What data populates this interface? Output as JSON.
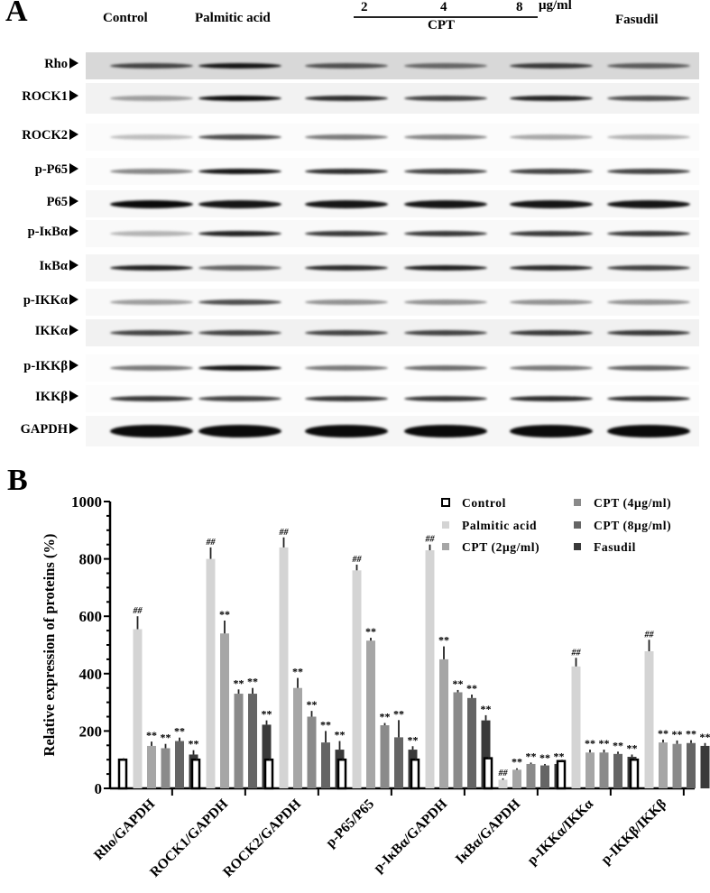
{
  "panelA": {
    "letter": "A",
    "lane_headers": {
      "control": "Control",
      "palmitic": "Palmitic acid",
      "cpt_doses": [
        "2",
        "4",
        "8"
      ],
      "cpt_unit": "μg/ml",
      "cpt_label": "CPT",
      "fasudil": "Fasudil"
    },
    "blots": [
      {
        "label": "Rho",
        "y": 58,
        "bg": "#d8d8d8",
        "h": 30,
        "intensity": [
          0.75,
          0.95,
          0.7,
          0.6,
          0.8,
          0.65
        ]
      },
      {
        "label": "ROCK1",
        "y": 92,
        "bg": "#f2f2f2",
        "h": 34,
        "intensity": [
          0.35,
          1.0,
          0.85,
          0.75,
          0.9,
          0.7
        ]
      },
      {
        "label": "ROCK2",
        "y": 137,
        "bg": "#fbfbfb",
        "h": 30,
        "intensity": [
          0.2,
          0.7,
          0.5,
          0.45,
          0.3,
          0.25
        ]
      },
      {
        "label": "p-P65",
        "y": 175,
        "bg": "#fbfbfb",
        "h": 30,
        "intensity": [
          0.45,
          0.95,
          0.85,
          0.75,
          0.75,
          0.75
        ]
      },
      {
        "label": "P65",
        "y": 211,
        "bg": "#f7f7f7",
        "h": 30,
        "intensity": [
          1.0,
          0.95,
          0.95,
          0.95,
          0.95,
          0.95
        ]
      },
      {
        "label": "p-IκBα",
        "y": 244,
        "bg": "#f9f9f9",
        "h": 30,
        "intensity": [
          0.25,
          0.9,
          0.8,
          0.8,
          0.8,
          0.8
        ]
      },
      {
        "label": "IκBα",
        "y": 282,
        "bg": "#f4f4f4",
        "h": 30,
        "intensity": [
          0.9,
          0.6,
          0.85,
          0.9,
          0.85,
          0.75
        ]
      },
      {
        "label": "p-IKKα",
        "y": 320,
        "bg": "#f8f8f8",
        "h": 30,
        "intensity": [
          0.35,
          0.7,
          0.4,
          0.4,
          0.4,
          0.4
        ]
      },
      {
        "label": "IKKα",
        "y": 354,
        "bg": "#f1f1f1",
        "h": 30,
        "intensity": [
          0.75,
          0.75,
          0.75,
          0.75,
          0.8,
          0.8
        ]
      },
      {
        "label": "p-IKKβ",
        "y": 393,
        "bg": "#fcfcfc",
        "h": 30,
        "intensity": [
          0.5,
          0.95,
          0.5,
          0.55,
          0.5,
          0.6
        ]
      },
      {
        "label": "IKKβ",
        "y": 427,
        "bg": "#fcfcfc",
        "h": 30,
        "intensity": [
          0.8,
          0.75,
          0.8,
          0.8,
          0.85,
          0.85
        ]
      },
      {
        "label": "GAPDH",
        "y": 461,
        "bg": "#f6f6f6",
        "h": 34,
        "intensity": [
          1.0,
          1.0,
          1.0,
          1.0,
          1.0,
          1.0
        ]
      }
    ]
  },
  "panelB": {
    "letter": "B"
  },
  "chart_data": {
    "type": "bar",
    "title": "",
    "xlabel": "",
    "ylabel": "Relative expression of proteins (%)",
    "ylim": [
      0,
      1000
    ],
    "yticks": [
      "0",
      "200",
      "400",
      "600",
      "800",
      "1000"
    ],
    "grid": false,
    "legend_position": "top-right",
    "categories": [
      "Rho/GAPDH",
      "ROCK1/GAPDH",
      "ROCK2/GAPDH",
      "p-P65/P65",
      "p-IκBα/GAPDH",
      "IκBα/GAPDH",
      "p-IKKα/IKKα",
      "p-IKKβ/IKKβ"
    ],
    "series": [
      {
        "name": "Control",
        "color": "#ffffff",
        "values": [
          100,
          100,
          100,
          100,
          100,
          105,
          95,
          100
        ],
        "errors": [
          5,
          5,
          5,
          6,
          5,
          5,
          5,
          5
        ],
        "marks": [
          "",
          "",
          "",
          "",
          "",
          "",
          "",
          ""
        ]
      },
      {
        "name": "Palmitic acid",
        "color": "#d4d4d4",
        "values": [
          555,
          800,
          840,
          760,
          830,
          30,
          425,
          478
        ],
        "errors": [
          45,
          40,
          35,
          20,
          20,
          5,
          30,
          40
        ],
        "marks": [
          "##",
          "##",
          "##",
          "##",
          "##",
          "##",
          "##",
          "##"
        ]
      },
      {
        "name": "CPT (2μg/ml)",
        "color": "#a6a6a6",
        "values": [
          148,
          540,
          350,
          515,
          450,
          65,
          125,
          160
        ],
        "errors": [
          15,
          45,
          35,
          10,
          45,
          5,
          10,
          10
        ],
        "marks": [
          "**",
          "**",
          "**",
          "**",
          "**",
          "**",
          "**",
          "**"
        ]
      },
      {
        "name": "CPT (4μg/ml)",
        "color": "#8a8a8a",
        "values": [
          140,
          330,
          250,
          220,
          335,
          85,
          125,
          155
        ],
        "errors": [
          15,
          15,
          20,
          8,
          8,
          5,
          10,
          12
        ],
        "marks": [
          "**",
          "**",
          "**",
          "**",
          "**",
          "**",
          "**",
          "**"
        ]
      },
      {
        "name": "CPT (8μg/ml)",
        "color": "#656565",
        "values": [
          165,
          330,
          160,
          178,
          315,
          80,
          120,
          158
        ],
        "errors": [
          12,
          20,
          40,
          60,
          12,
          5,
          8,
          10
        ],
        "marks": [
          "**",
          "**",
          "**",
          "**",
          "**",
          "**",
          "**",
          "**"
        ]
      },
      {
        "name": "Fasudil",
        "color": "#3a3a3a",
        "values": [
          118,
          222,
          135,
          135,
          237,
          85,
          110,
          148
        ],
        "errors": [
          15,
          15,
          30,
          12,
          18,
          5,
          8,
          10
        ],
        "marks": [
          "**",
          "**",
          "**",
          "**",
          "**",
          "**",
          "**",
          "**"
        ]
      }
    ]
  }
}
